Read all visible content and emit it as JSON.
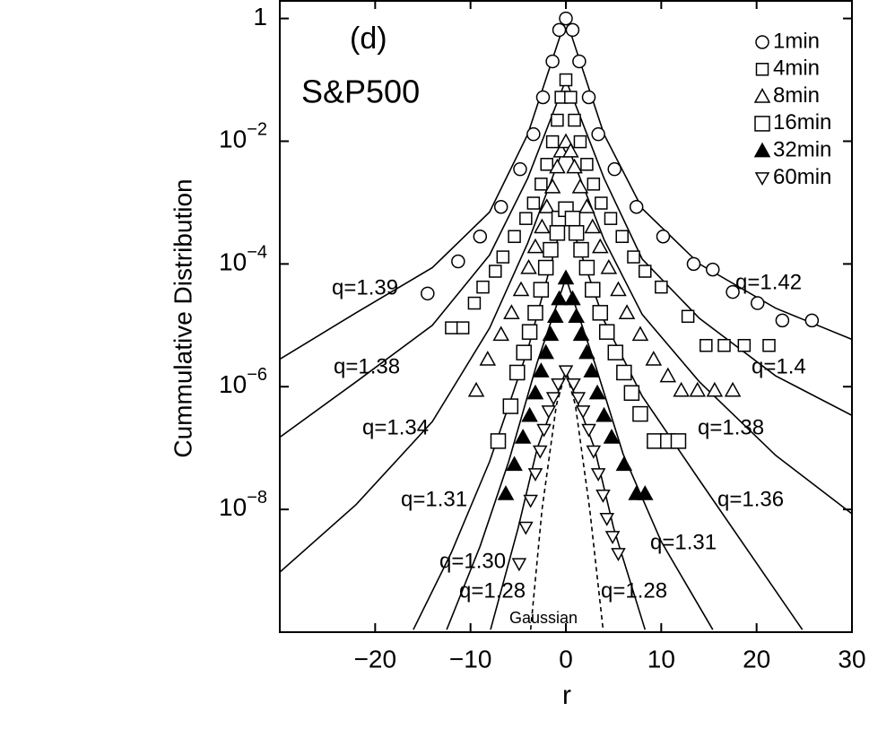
{
  "chart_data": {
    "type": "scatter",
    "title": "(d)",
    "subtitle": "S&P500",
    "x_label": "r",
    "y_label": "Cummulative Distribution",
    "log_y": true,
    "xlim": [
      -30,
      30
    ],
    "xticks": [
      {
        "value": -20,
        "label": "−20"
      },
      {
        "value": -10,
        "label": "−10"
      },
      0,
      10,
      20,
      30
    ],
    "ylim": [
      1e-10,
      2
    ],
    "yticks": [
      1,
      {
        "value": 0.01,
        "label": "10−2"
      },
      {
        "value": 0.0001,
        "label": "10−4"
      },
      {
        "value": 1e-06,
        "label": "10−6"
      },
      {
        "value": 1e-08,
        "label": "10−8"
      }
    ],
    "series": [
      {
        "name": "1min",
        "color": "#000000",
        "marker": "circle",
        "filled": false,
        "marker_size": 7,
        "x": [
          -14.5,
          -11.3,
          -9.0,
          -6.8,
          -4.8,
          -3.4,
          -2.4,
          -1.4,
          -0.7,
          0,
          0.7,
          1.4,
          2.4,
          3.4,
          5.1,
          7.4,
          10.2,
          13.4,
          15.4,
          17.5,
          20.1,
          22.7,
          25.8
        ],
        "values": [
          3.3e-05,
          0.00011,
          0.00028,
          0.00085,
          0.0035,
          0.013,
          0.052,
          0.2,
          0.65,
          1,
          0.65,
          0.2,
          0.052,
          0.013,
          0.0035,
          0.00085,
          0.00028,
          0.0001,
          8.1e-05,
          3.5e-05,
          2.3e-05,
          1.2e-05,
          1.2e-05
        ]
      },
      {
        "name": "4min",
        "color": "#000000",
        "marker": "square",
        "filled": false,
        "marker_size": 6.5,
        "x": [
          -12.0,
          -10.8,
          -9.6,
          -8.7,
          -7.4,
          -6.6,
          -5.4,
          -4.2,
          -3.4,
          -2.6,
          -2.0,
          -1.4,
          -0.9,
          -0.5,
          0,
          0.5,
          0.9,
          1.5,
          2.2,
          2.9,
          3.7,
          4.7,
          5.9,
          7.1,
          8.3,
          10.0,
          12.8,
          14.7,
          16.6,
          18.7,
          21.3
        ],
        "values": [
          9.1e-06,
          9.1e-06,
          2.3e-05,
          4.2e-05,
          7.6e-05,
          0.00013,
          0.00028,
          0.00055,
          0.00098,
          0.002,
          0.0042,
          0.0098,
          0.022,
          0.052,
          0.1,
          0.052,
          0.022,
          0.0098,
          0.0042,
          0.002,
          0.00098,
          0.00055,
          0.00028,
          0.00013,
          7.6e-05,
          4.2e-05,
          1.4e-05,
          4.7e-06,
          4.7e-06,
          4.7e-06,
          4.7e-06
        ]
      },
      {
        "name": "8min",
        "color": "#000000",
        "marker": "triangle",
        "filled": false,
        "marker_size": 8,
        "x": [
          -9.4,
          -8.2,
          -6.8,
          -5.7,
          -4.7,
          -3.9,
          -3.2,
          -2.5,
          -2.0,
          -1.4,
          -0.9,
          -0.5,
          0,
          0.5,
          0.9,
          1.5,
          2.2,
          2.8,
          3.6,
          4.5,
          5.5,
          6.4,
          7.8,
          9.2,
          10.7,
          12.1,
          13.8,
          15.6,
          17.5
        ],
        "values": [
          8.7e-07,
          2.8e-06,
          7.1e-06,
          1.6e-05,
          3.8e-05,
          8.7e-05,
          0.00019,
          0.0004,
          0.00085,
          0.0018,
          0.0038,
          0.0069,
          0.0098,
          0.0069,
          0.0038,
          0.0018,
          0.00085,
          0.0004,
          0.00019,
          8.7e-05,
          3.8e-05,
          1.6e-05,
          7.1e-06,
          2.8e-06,
          1.5e-06,
          8.7e-07,
          8.7e-07,
          8.7e-07,
          8.7e-07
        ]
      },
      {
        "name": "16min",
        "color": "#000000",
        "marker": "square",
        "filled": false,
        "marker_size": 8,
        "x": [
          -7.1,
          -5.8,
          -5.1,
          -4.4,
          -3.8,
          -3.2,
          -2.6,
          -2.1,
          -1.6,
          -0.9,
          -0.7,
          0,
          0.7,
          1.1,
          1.6,
          2.2,
          2.8,
          3.6,
          4.3,
          5.2,
          6.1,
          6.9,
          7.8,
          9.3,
          10.7,
          11.8
        ],
        "values": [
          1.3e-07,
          4.8e-07,
          1.7e-06,
          3.6e-06,
          7.8e-06,
          1.6e-05,
          3.8e-05,
          8.7e-05,
          0.00017,
          0.00032,
          0.00055,
          0.00078,
          0.00055,
          0.00032,
          0.00017,
          8.7e-05,
          3.8e-05,
          1.6e-05,
          7.8e-06,
          3.6e-06,
          1.7e-06,
          7.9e-07,
          3.6e-07,
          1.3e-07,
          1.3e-07,
          1.3e-07
        ]
      },
      {
        "name": "32min",
        "color": "#000000",
        "marker": "triangle",
        "filled": true,
        "marker_size": 8,
        "x": [
          -6.3,
          -5.4,
          -4.5,
          -3.8,
          -3.2,
          -2.6,
          -2.1,
          -1.6,
          -1.1,
          -0.7,
          0,
          0.7,
          1.1,
          1.6,
          2.2,
          2.7,
          3.3,
          4.0,
          4.8,
          6.1,
          7.4,
          8.3
        ],
        "values": [
          1.8e-08,
          5.4e-08,
          1.5e-07,
          3.4e-07,
          7.9e-07,
          1.8e-06,
          3.6e-06,
          7.1e-06,
          1.4e-05,
          2.7e-05,
          5.9e-05,
          2.7e-05,
          1.4e-05,
          7.1e-06,
          3.6e-06,
          1.8e-06,
          7.9e-07,
          3.4e-07,
          1.5e-07,
          5.4e-08,
          1.8e-08,
          1.8e-08
        ]
      },
      {
        "name": "60min",
        "color": "#000000",
        "marker": "triangle-down",
        "filled": false,
        "marker_size": 7,
        "x": [
          -4.9,
          -4.2,
          -3.7,
          -3.2,
          -2.7,
          -2.3,
          -1.8,
          -1.3,
          -0.8,
          0,
          0.8,
          1.3,
          1.8,
          2.4,
          2.9,
          3.4,
          3.9,
          4.3,
          4.9,
          5.5
        ],
        "values": [
          1.3e-09,
          5.1e-09,
          1.4e-08,
          3.8e-08,
          8.9e-08,
          2e-07,
          4e-07,
          6.6e-07,
          1.1e-06,
          1.8e-06,
          1.1e-06,
          6.6e-07,
          4e-07,
          2e-07,
          8.9e-08,
          3.8e-08,
          1.7e-08,
          7.1e-09,
          3.6e-09,
          1.9e-09
        ]
      }
    ],
    "fits": [
      {
        "label": "q=1.39",
        "x": [
          -30,
          -22,
          -14,
          -8,
          -4,
          0
        ],
        "values": [
          2.8e-06,
          1.6e-05,
          8.7e-05,
          0.0007,
          0.013,
          1
        ]
      },
      {
        "label": "q=1.42",
        "x": [
          0,
          4,
          8,
          14,
          22,
          30
        ],
        "values": [
          1,
          0.013,
          0.0008,
          0.0001,
          1.9e-05,
          5.9e-06
        ]
      },
      {
        "label": "q=1.38",
        "x": [
          -30,
          -22,
          -14,
          -8,
          -4,
          0
        ],
        "values": [
          1.5e-07,
          1.2e-06,
          1e-05,
          0.00014,
          0.0025,
          0.1
        ]
      },
      {
        "label": "q=1.4",
        "x": [
          0,
          4,
          8,
          14,
          22,
          30
        ],
        "values": [
          0.1,
          0.0025,
          0.00012,
          1.3e-05,
          1.5e-06,
          3.4e-07
        ]
      },
      {
        "label": "q=1.34",
        "x": [
          -30,
          -22,
          -14,
          -8,
          -4,
          0
        ],
        "values": [
          9.5e-10,
          1.2e-08,
          2.7e-07,
          9e-06,
          0.00022,
          0.0098
        ]
      },
      {
        "label": "q=1.38",
        "x": [
          0,
          4,
          8,
          14,
          22,
          30
        ],
        "values": [
          0.0098,
          0.00025,
          1.5e-05,
          1.2e-06,
          7.6e-08,
          8.5e-09
        ]
      },
      {
        "label": "q=1.31",
        "x": [
          -16,
          -12,
          -8,
          -4,
          0
        ],
        "values": [
          1.1e-10,
          2e-09,
          6e-08,
          4e-06,
          0.00078
        ]
      },
      {
        "label": "q=1.36",
        "x": [
          0,
          4,
          8,
          14,
          24.8
        ],
        "values": [
          0.00078,
          1.2e-05,
          7e-07,
          3e-08,
          1.1e-10
        ]
      },
      {
        "label": "q=1.30",
        "x": [
          -12.5,
          -9,
          -6,
          -3,
          0
        ],
        "values": [
          1.1e-10,
          2.5e-09,
          6e-08,
          2.5e-06,
          5.9e-05
        ]
      },
      {
        "label": "q=1.31",
        "x": [
          0,
          3,
          6,
          10,
          15.4
        ],
        "values": [
          5.9e-05,
          2.5e-06,
          8e-08,
          3e-09,
          1.1e-10
        ]
      },
      {
        "label": "q=1.28",
        "x": [
          -7.9,
          -5,
          -3,
          0
        ],
        "values": [
          1.1e-10,
          5e-09,
          1e-07,
          1.8e-06
        ]
      },
      {
        "label": "q=1.28",
        "x": [
          0,
          3,
          5,
          8.3
        ],
        "values": [
          1.8e-06,
          1e-07,
          5e-09,
          1.1e-10
        ]
      },
      {
        "label": "Gaussian",
        "dashed": true,
        "x": [
          -3.7,
          -2.5,
          -1,
          0,
          1,
          2.5,
          3.9
        ],
        "values": [
          1.1e-10,
          1e-08,
          5e-07,
          1.8e-06,
          5e-07,
          1e-08,
          1.1e-10
        ]
      }
    ]
  }
}
